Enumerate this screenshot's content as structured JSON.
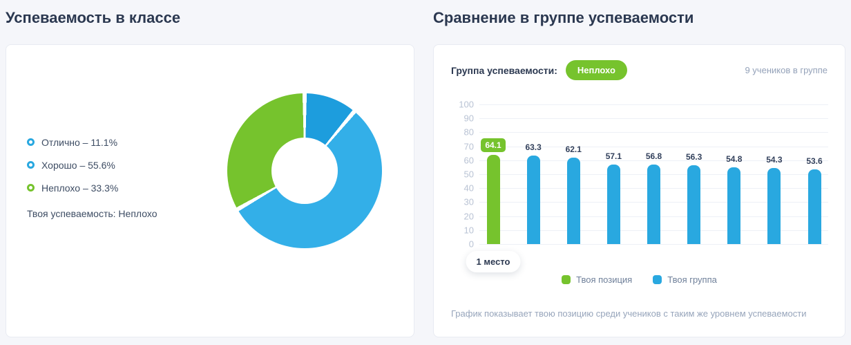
{
  "left_panel": {
    "title": "Успеваемость в классе",
    "legend": [
      {
        "label": "Отлично – 11.1%",
        "color": "#29a8e0"
      },
      {
        "label": "Хорошо – 55.6%",
        "color": "#29a8e0"
      },
      {
        "label": "Неплохо – 33.3%",
        "color": "#76c32d"
      }
    ],
    "note": "Твоя успеваемость: Неплохо"
  },
  "right_panel": {
    "title": "Сравнение в группе успеваемости",
    "group_label": "Группа успеваемости:",
    "group_badge": "Неплохо",
    "group_count": "9 учеников в группе",
    "rank_badge": "1 место",
    "legend": [
      {
        "label": "Твоя позиция",
        "color": "#76c32d"
      },
      {
        "label": "Твоя группа",
        "color": "#29a8e0"
      }
    ],
    "footnote": "График показывает твою позицию среди учеников с таким же уровнем успеваемости"
  },
  "chart_data": [
    {
      "type": "pie",
      "title": "Успеваемость в классе",
      "labels": [
        "Отлично",
        "Хорошо",
        "Неплохо"
      ],
      "values": [
        11.1,
        55.6,
        33.3
      ],
      "colors": [
        "#1d9ddd",
        "#33afe8",
        "#76c32d"
      ],
      "donut": true,
      "legend_position": "left"
    },
    {
      "type": "bar",
      "title": "Сравнение в группе успеваемости",
      "values": [
        64.1,
        63.3,
        62.1,
        57.1,
        56.8,
        56.3,
        54.8,
        54.3,
        53.6
      ],
      "highlight_index": 0,
      "highlight_color": "#76c32d",
      "bar_color": "#29a8e0",
      "ylim": [
        0,
        100
      ],
      "yticks": [
        0,
        10,
        20,
        30,
        40,
        50,
        60,
        70,
        80,
        90,
        100
      ],
      "grid": true,
      "legend_position": "bottom",
      "series": [
        {
          "name": "Твоя позиция",
          "color": "#76c32d"
        },
        {
          "name": "Твоя группа",
          "color": "#29a8e0"
        }
      ]
    }
  ]
}
